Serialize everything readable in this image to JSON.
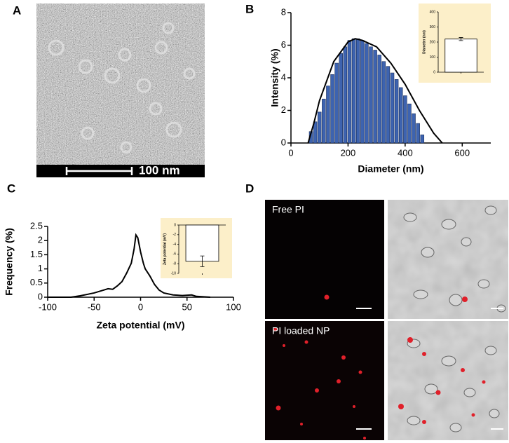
{
  "panel_labels": [
    "A",
    "B",
    "C",
    "D"
  ],
  "tem": {
    "scale_label": "100 nm"
  },
  "microscopy": {
    "labels": [
      "Free PI",
      "PI loaded NP"
    ]
  },
  "chart_data": [
    {
      "type": "bar",
      "xlabel": "Diameter (nm)",
      "ylabel": "Intensity (%)",
      "x": [
        70,
        85,
        100,
        115,
        130,
        145,
        160,
        175,
        190,
        205,
        220,
        235,
        250,
        265,
        280,
        295,
        310,
        325,
        340,
        355,
        370,
        385,
        400,
        415,
        430,
        445,
        460
      ],
      "series": [
        {
          "color": "#3d63b0",
          "values": [
            0.7,
            1.3,
            1.9,
            2.7,
            3.5,
            4.2,
            4.9,
            5.5,
            5.9,
            6.3,
            6.4,
            6.4,
            6.3,
            6.1,
            5.9,
            5.7,
            5.4,
            5.0,
            4.7,
            4.3,
            3.9,
            3.4,
            2.9,
            2.4,
            1.8,
            1.2,
            0.5
          ]
        }
      ],
      "fit": {
        "color": "#000000",
        "x": [
          60,
          80,
          100,
          150,
          200,
          225,
          250,
          300,
          350,
          400,
          450,
          500,
          530
        ],
        "values": [
          0,
          1.2,
          2.6,
          5.0,
          6.2,
          6.4,
          6.3,
          5.9,
          4.9,
          3.6,
          2.0,
          0.6,
          0
        ]
      },
      "xlim": [
        0,
        700
      ],
      "xticks": [
        0,
        200,
        400,
        600
      ],
      "ylim": [
        0,
        8
      ],
      "yticks": [
        0,
        2,
        4,
        6,
        8
      ]
    },
    {
      "type": "bar",
      "ylabel": "Diameter (nm)",
      "categories": [
        null
      ],
      "series": [
        {
          "color": "#ffffff",
          "values": [
            220
          ],
          "errors": [
            10
          ]
        }
      ],
      "ylim": [
        0,
        400
      ],
      "yticks": [
        0,
        100,
        200,
        300,
        400
      ]
    },
    {
      "type": "line",
      "xlabel": "Zeta potential (mV)",
      "ylabel": "Frequency (%)",
      "x": [
        -100,
        -75,
        -65,
        -50,
        -40,
        -35,
        -30,
        -25,
        -20,
        -15,
        -10,
        -7,
        -5,
        -3,
        0,
        3,
        5,
        10,
        15,
        20,
        25,
        35,
        45,
        55,
        60,
        75
      ],
      "series": [
        {
          "color": "#000000",
          "values": [
            0,
            0,
            0.05,
            0.15,
            0.25,
            0.3,
            0.28,
            0.4,
            0.55,
            0.85,
            1.2,
            1.7,
            2.2,
            2.1,
            1.6,
            1.2,
            1.0,
            0.75,
            0.45,
            0.25,
            0.15,
            0.08,
            0.06,
            0.08,
            0.03,
            0
          ]
        }
      ],
      "xlim": [
        -100,
        100
      ],
      "xticks": [
        -100,
        -50,
        0,
        50,
        100
      ],
      "ylim": [
        0,
        2.5
      ],
      "yticks": [
        0,
        0.5,
        1.0,
        1.5,
        2.0,
        2.5
      ]
    },
    {
      "type": "bar",
      "ylabel": "Zeta potential (mV)",
      "categories": [
        null
      ],
      "series": [
        {
          "color": "#ffffff",
          "values": [
            -7.5
          ],
          "errors": [
            1.1
          ]
        }
      ],
      "ylim": [
        -10,
        0
      ],
      "yticks": [
        0,
        -2,
        -4,
        -6,
        -8,
        -10
      ]
    }
  ]
}
